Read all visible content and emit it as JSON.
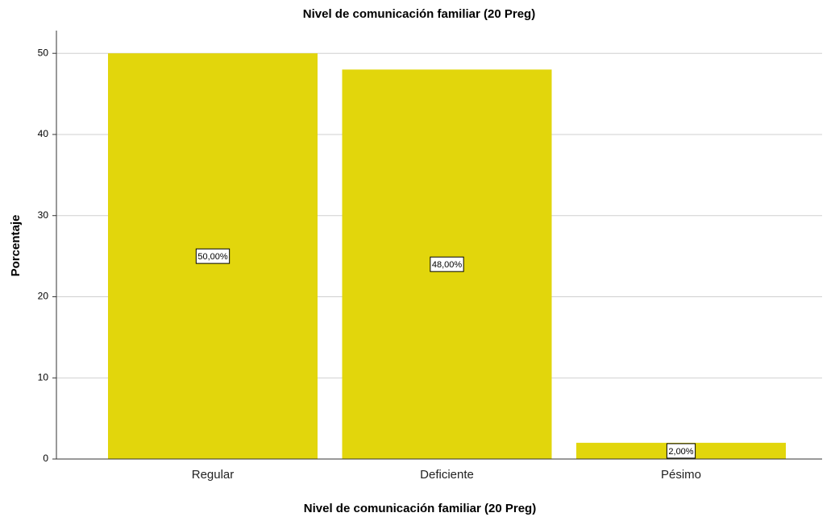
{
  "chart_data": {
    "type": "bar",
    "title": "Nivel de comunicación familiar (20 Preg)",
    "x_label": "Nivel de comunicación familiar (20 Preg)",
    "y_label": "Porcentaje",
    "categories": [
      "Regular",
      "Deficiente",
      "Pésimo"
    ],
    "values": [
      50,
      48,
      2
    ],
    "value_labels": [
      "50,00%",
      "48,00%",
      "2,00%"
    ],
    "color": "#e2d60c",
    "ylim": [
      0,
      52.8
    ],
    "yticks": [
      0,
      10,
      20,
      30,
      40,
      50
    ],
    "grid": true
  }
}
